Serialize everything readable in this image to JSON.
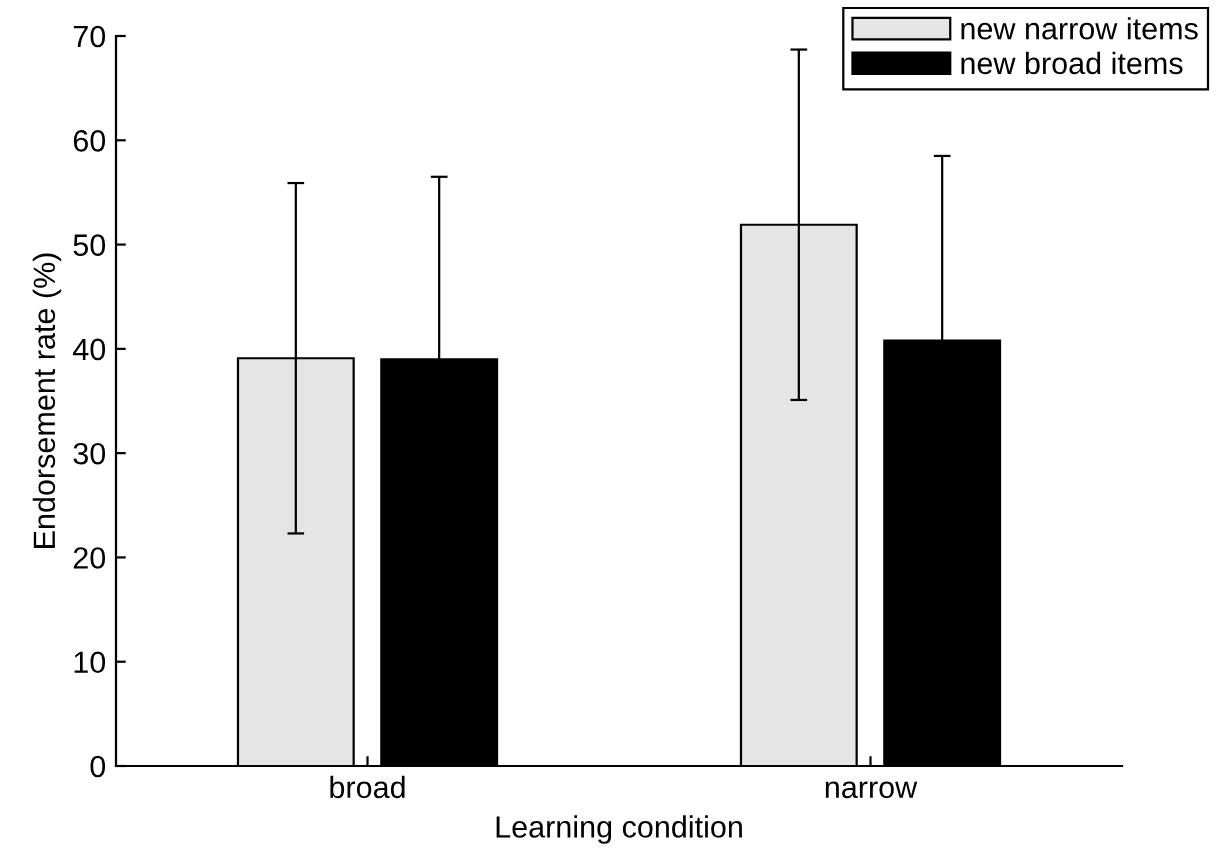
{
  "chart_data": {
    "type": "bar",
    "xlabel": "Learning condition",
    "ylabel": "Endorsement rate (%)",
    "categories": [
      "broad",
      "narrow"
    ],
    "series": [
      {
        "name": "new narrow items",
        "color": "#e5e5e5",
        "values": [
          39.1,
          51.9
        ],
        "errors": [
          16.8,
          16.8
        ]
      },
      {
        "name": "new broad items",
        "color": "#000000",
        "values": [
          39.0,
          40.8
        ],
        "errors": [
          17.5,
          17.7
        ]
      }
    ],
    "ylim": [
      0,
      70
    ],
    "yticks": [
      0,
      10,
      20,
      30,
      40,
      50,
      60,
      70
    ],
    "grid": false,
    "legend": "top right"
  }
}
